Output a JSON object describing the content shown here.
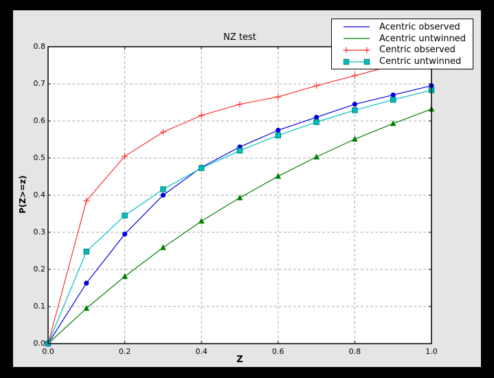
{
  "window": {
    "background": "#000000",
    "figure_background": "#e5e5e5",
    "plot_background": "#ffffff",
    "grid_color": "#aaaaaa",
    "axis_color": "#000000"
  },
  "chart_data": {
    "type": "line",
    "title": "NZ test",
    "xlabel": "Z",
    "ylabel": "P(Z>=z)",
    "xlim": [
      0.0,
      1.0
    ],
    "ylim": [
      0.0,
      0.8
    ],
    "xticks": [
      "0.0",
      "0.2",
      "0.4",
      "0.6",
      "0.8",
      "1.0"
    ],
    "yticks": [
      "0.0",
      "0.1",
      "0.2",
      "0.3",
      "0.4",
      "0.5",
      "0.6",
      "0.7",
      "0.8"
    ],
    "grid": true,
    "legend_position": "upper right",
    "x": [
      0.0,
      0.1,
      0.2,
      0.3,
      0.4,
      0.5,
      0.6,
      0.7,
      0.8,
      0.9,
      1.0
    ],
    "series": [
      {
        "name": "Acentric observed",
        "color": "#0000dd",
        "marker": "circle",
        "legend_marker": false,
        "values": [
          0.0,
          0.163,
          0.295,
          0.4,
          0.475,
          0.53,
          0.575,
          0.61,
          0.645,
          0.67,
          0.695
        ]
      },
      {
        "name": "Acentric untwinned",
        "color": "#008000",
        "marker": "triangle",
        "legend_marker": false,
        "values": [
          0.0,
          0.095,
          0.181,
          0.259,
          0.33,
          0.393,
          0.451,
          0.503,
          0.551,
          0.593,
          0.632
        ]
      },
      {
        "name": "Centric observed",
        "color": "#ff3030",
        "marker": "plus",
        "legend_marker": true,
        "values": [
          0.0,
          0.385,
          0.505,
          0.57,
          0.615,
          0.645,
          0.665,
          0.695,
          0.722,
          0.75,
          0.777
        ]
      },
      {
        "name": "Centric untwinned",
        "color": "#00bfbf",
        "marker": "square",
        "marker_edge": "#007d7d",
        "legend_marker": true,
        "values": [
          0.0,
          0.248,
          0.345,
          0.416,
          0.473,
          0.52,
          0.561,
          0.597,
          0.629,
          0.657,
          0.683
        ]
      }
    ]
  }
}
